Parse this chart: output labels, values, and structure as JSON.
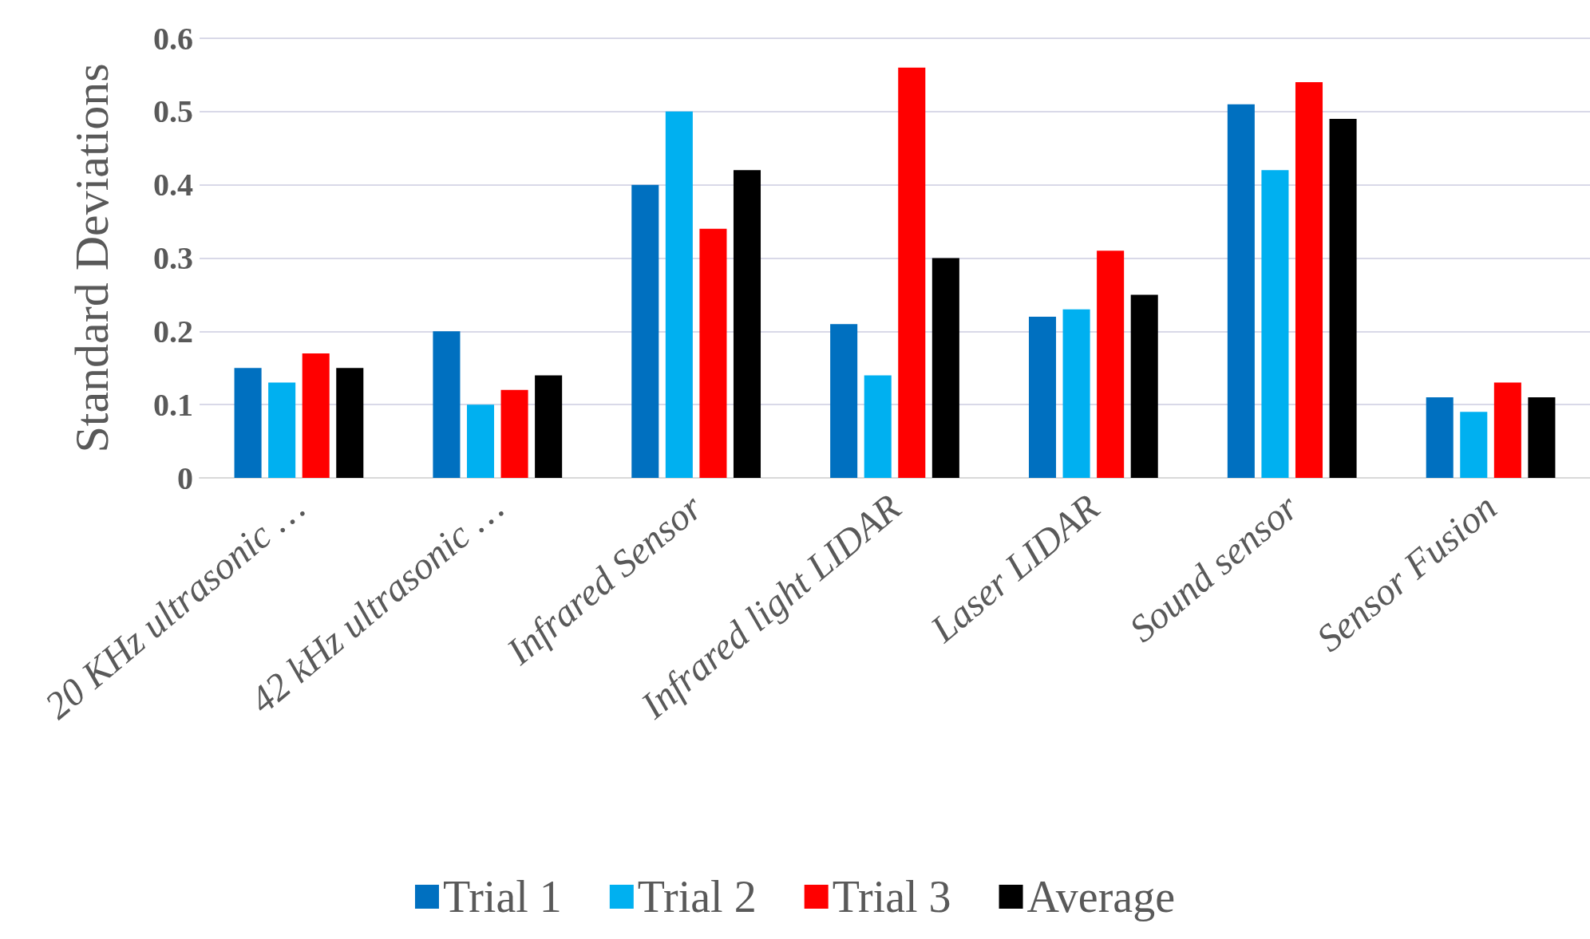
{
  "chart_data": {
    "type": "bar",
    "ylabel": "Standard Deviations",
    "categories": [
      "20 KHz ultrasonic …",
      "42 kHz ultrasonic …",
      "Infrared Sensor",
      "Infrared light LIDAR",
      "Laser LIDAR",
      "Sound sensor",
      "Sensor Fusion"
    ],
    "series": [
      {
        "name": "Trial 1",
        "color": "#0070c0",
        "values": [
          0.15,
          0.2,
          0.4,
          0.21,
          0.22,
          0.51,
          0.11
        ]
      },
      {
        "name": "Trial 2",
        "color": "#00b0f0",
        "values": [
          0.13,
          0.1,
          0.5,
          0.14,
          0.23,
          0.42,
          0.09
        ]
      },
      {
        "name": "Trial 3",
        "color": "#ff0000",
        "values": [
          0.17,
          0.12,
          0.34,
          0.56,
          0.31,
          0.54,
          0.13
        ]
      },
      {
        "name": "Average",
        "color": "#000000",
        "values": [
          0.15,
          0.14,
          0.42,
          0.3,
          0.25,
          0.49,
          0.11
        ]
      }
    ],
    "ylim": [
      0,
      0.6
    ],
    "yticks": [
      0,
      0.1,
      0.2,
      0.3,
      0.4,
      0.5,
      0.6
    ],
    "grid": "y",
    "legend": "bottom"
  }
}
